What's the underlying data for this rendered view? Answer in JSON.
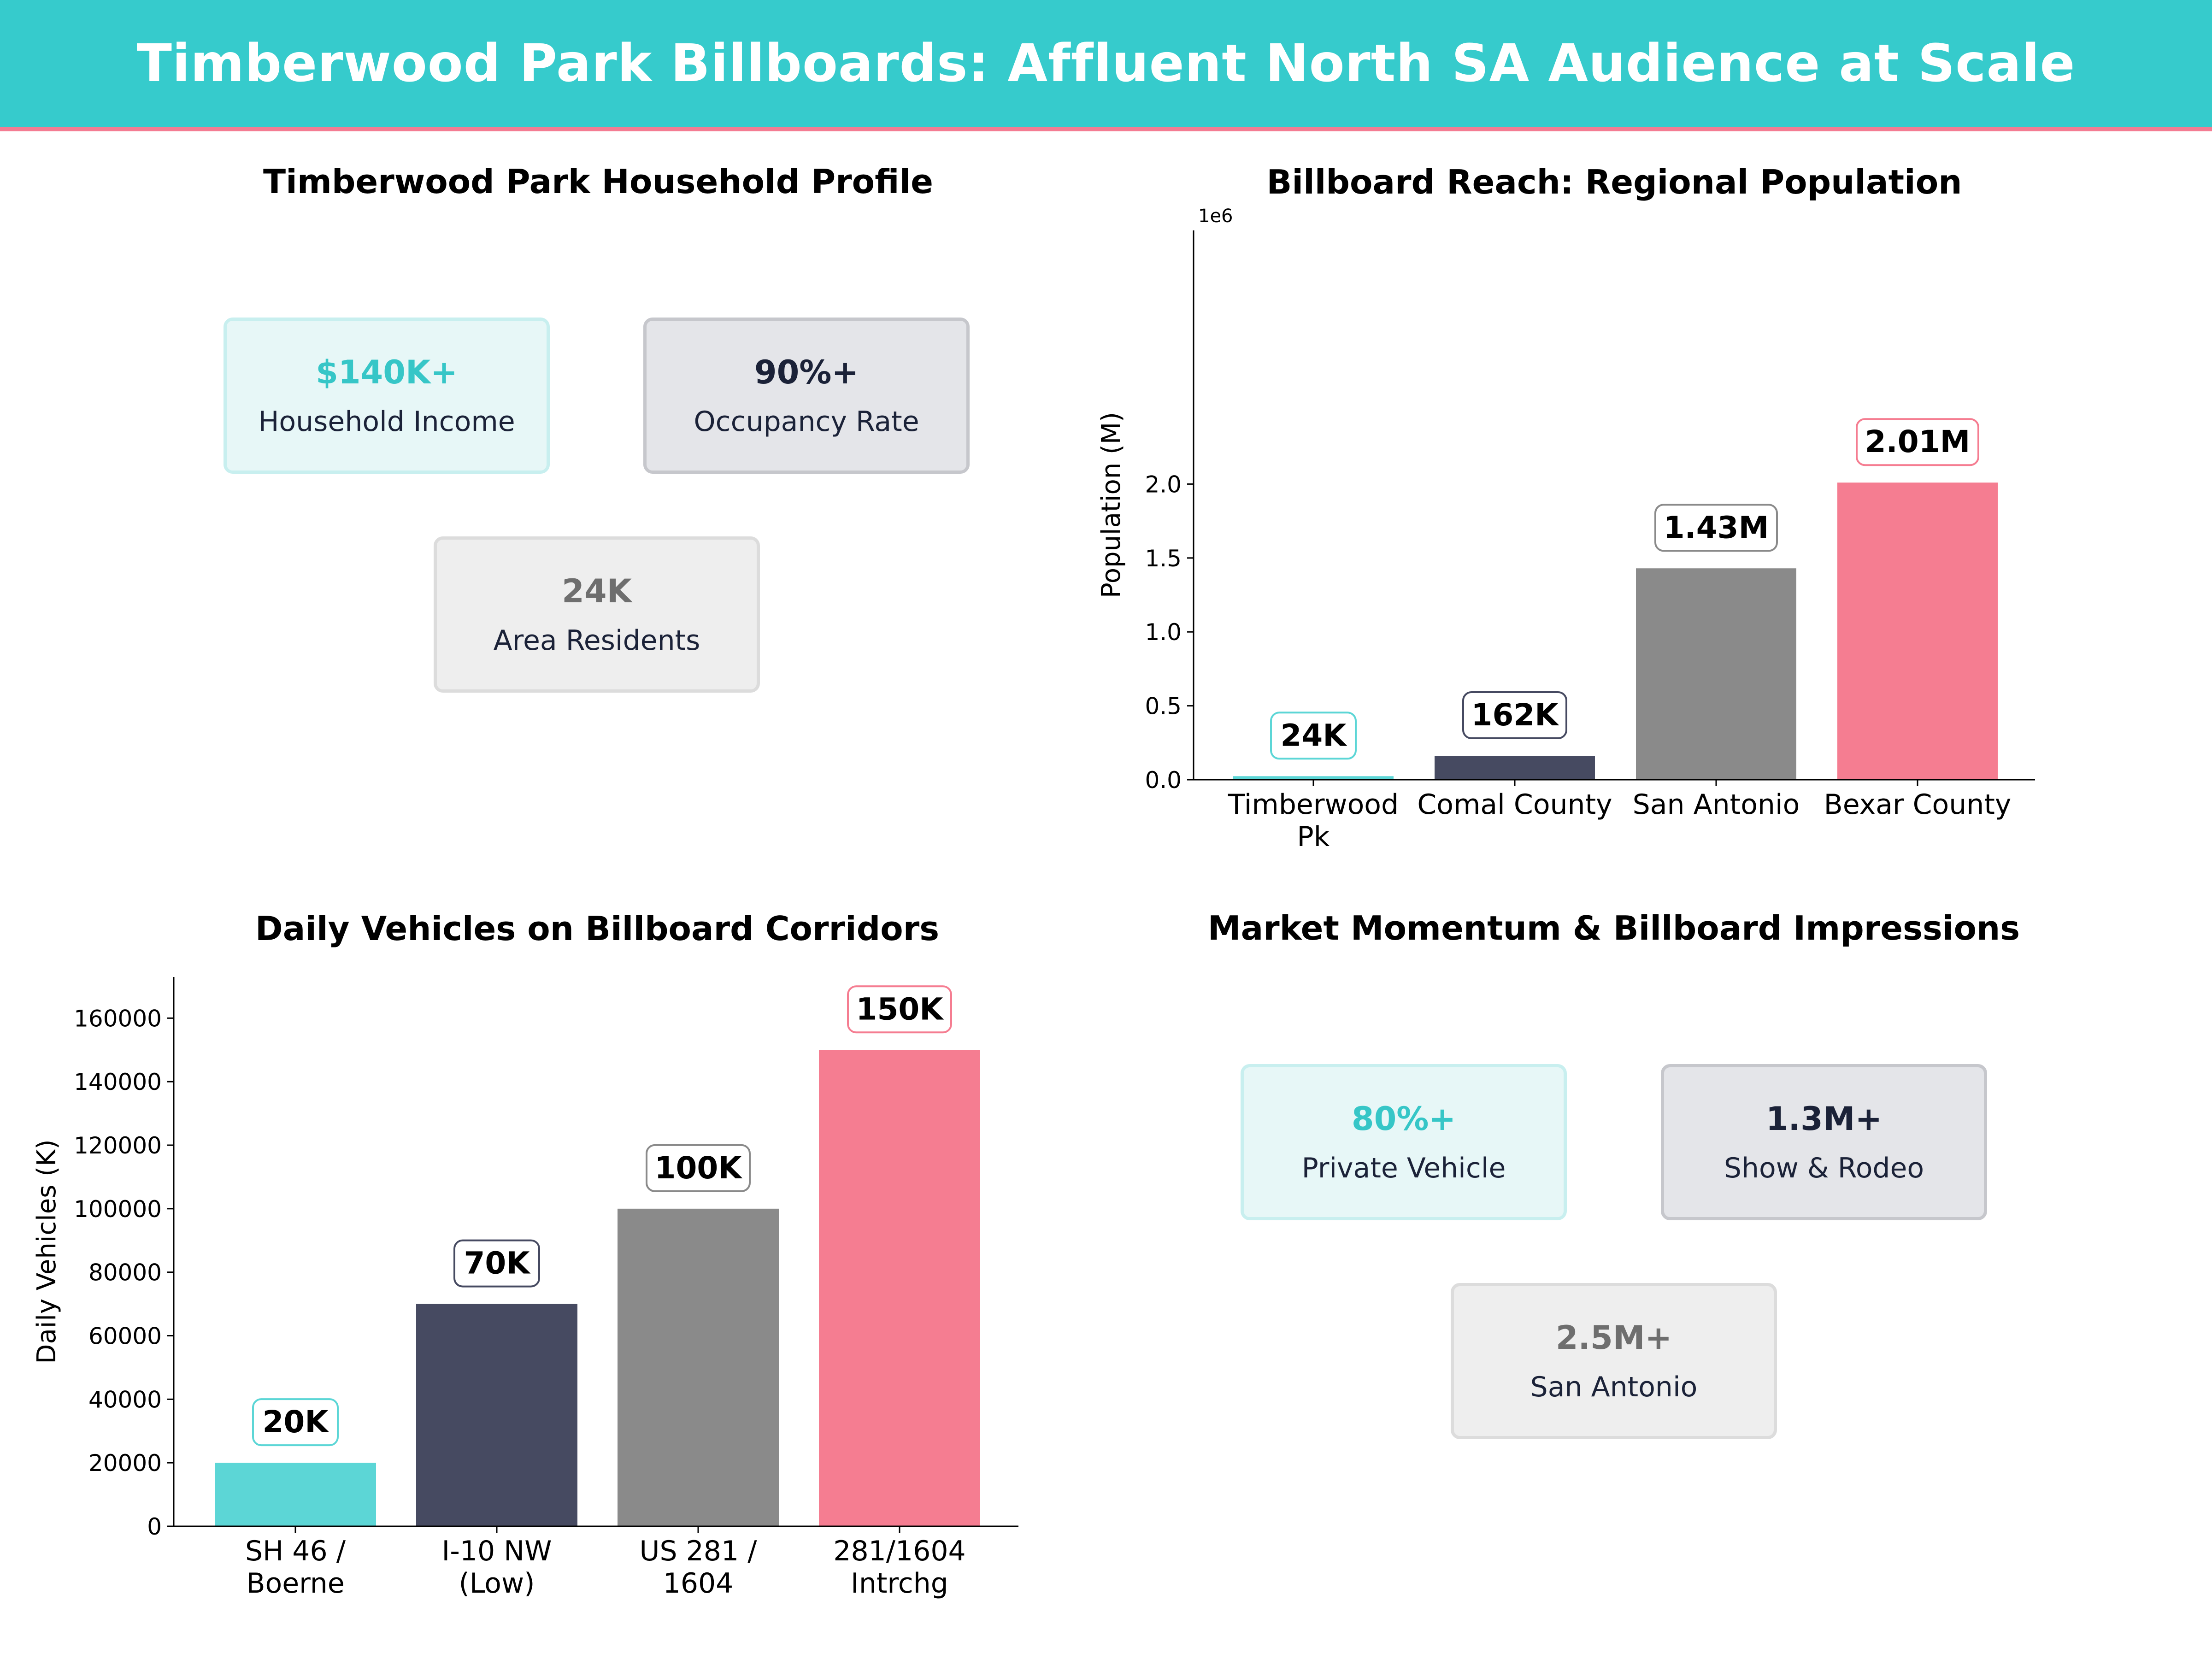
{
  "header": {
    "title": "Timberwood Park Billboards: Affluent North SA Audience at Scale"
  },
  "colors": {
    "teal": "#5CD6D6",
    "navy": "#464A61",
    "gray": "#8A8A8A",
    "pink": "#F57D91",
    "teal_text": "#36C6C7",
    "navy_text": "#1B2238",
    "gray_text": "#6E6E6E"
  },
  "household_profile": {
    "title": "Timberwood Park Household Profile",
    "cards": [
      {
        "value": "$140K+",
        "label": "Household Income"
      },
      {
        "value": "90%+",
        "label": "Occupancy Rate"
      },
      {
        "value": "24K",
        "label": "Area Residents"
      }
    ]
  },
  "market_momentum": {
    "title": "Market Momentum & Billboard Impressions",
    "cards": [
      {
        "value": "80%+",
        "label": "Private Vehicle"
      },
      {
        "value": "1.3M+",
        "label": "Show & Rodeo"
      },
      {
        "value": "2.5M+",
        "label": "San Antonio"
      }
    ]
  },
  "chart_data": [
    {
      "type": "bar",
      "title": "Billboard Reach: Regional Population",
      "ylabel": "Population (M)",
      "offset_label": "1e6",
      "categories": [
        [
          "Timberwood",
          "Pk"
        ],
        [
          "Comal County"
        ],
        [
          "San Antonio"
        ],
        [
          "Bexar County"
        ]
      ],
      "values": [
        24000,
        162000,
        1430000,
        2010000
      ],
      "data_labels": [
        "24K",
        "162K",
        "1.43M",
        "2.01M"
      ],
      "ylim": [
        0,
        2260000
      ],
      "yticks": [
        0,
        500000,
        1000000,
        1500000,
        2000000
      ],
      "ytick_labels": [
        "0.0",
        "0.5",
        "1.0",
        "1.5",
        "2.0"
      ],
      "bar_colors": [
        "#5CD6D6",
        "#464A61",
        "#8A8A8A",
        "#F57D91"
      ],
      "grid": false
    },
    {
      "type": "bar",
      "title": "Daily Vehicles on Billboard Corridors",
      "ylabel": "Daily Vehicles (K)",
      "categories": [
        [
          "SH 46 /",
          "Boerne"
        ],
        [
          "I-10 NW",
          "(Low)"
        ],
        [
          "US 281 /",
          "1604"
        ],
        [
          "281/1604",
          "Intrchg"
        ]
      ],
      "values": [
        20000,
        70000,
        100000,
        150000
      ],
      "data_labels": [
        "20K",
        "70K",
        "100K",
        "150K"
      ],
      "ylim": [
        0,
        166000
      ],
      "yticks": [
        0,
        20000,
        40000,
        60000,
        80000,
        100000,
        120000,
        140000,
        160000
      ],
      "ytick_labels": [
        "0",
        "20000",
        "40000",
        "60000",
        "80000",
        "100000",
        "120000",
        "140000",
        "160000"
      ],
      "bar_colors": [
        "#5CD6D6",
        "#464A61",
        "#8A8A8A",
        "#F57D91"
      ],
      "grid": false
    }
  ]
}
